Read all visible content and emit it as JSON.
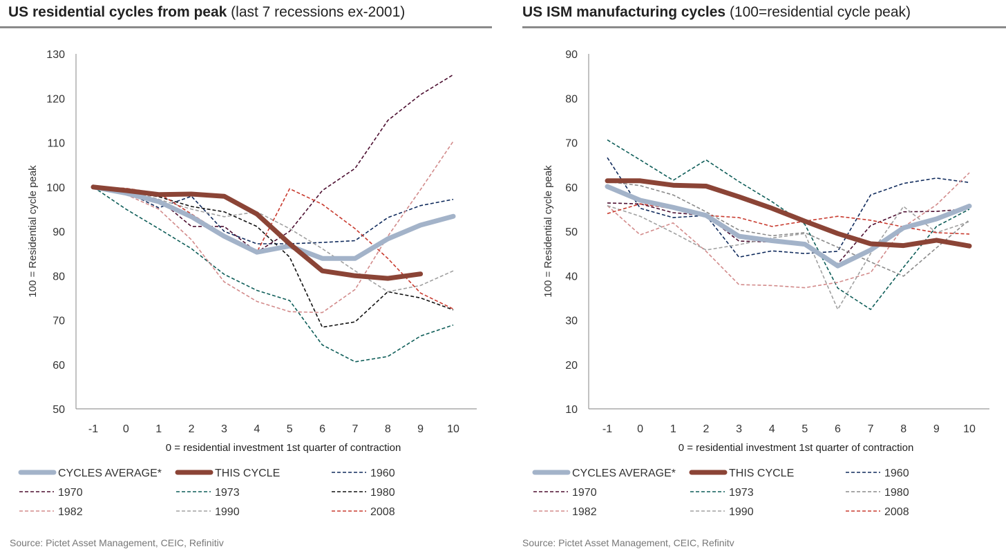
{
  "colors": {
    "average": "#a3b3c9",
    "this_cycle": "#8b4436",
    "1960": "#0f2a5c",
    "1970": "#4b0d2f",
    "1973": "#0d5d58",
    "1980_left": "#111111",
    "1980_right": "#8a8a8a",
    "1982": "#d28a8a",
    "1990": "#a0a0a0",
    "2008": "#c83a2e"
  },
  "chart_data": [
    {
      "type": "line",
      "title": "US residential cycles from peak",
      "subtitle": "(last 7 recessions ex-2001)",
      "xlabel": "0 = residential investment 1st quarter of contraction",
      "ylabel": "100 = Residential cycle peak",
      "ylim": [
        50,
        130
      ],
      "yticks": [
        "50",
        "60",
        "70",
        "80",
        "90",
        "100",
        "110",
        "120",
        "130"
      ],
      "x": [
        -1,
        0,
        1,
        2,
        3,
        4,
        5,
        6,
        7,
        8,
        9,
        10
      ],
      "xticks": [
        "-1",
        "0",
        "1",
        "2",
        "3",
        "4",
        "5",
        "6",
        "7",
        "8",
        "9",
        "10"
      ],
      "grid": false,
      "legend_position": "bottom",
      "source": "Source: Pictet Asset Management, CEIC, Refinitiv",
      "series": [
        {
          "name": "CYCLES AVERAGE*",
          "style": "thick",
          "color_key": "average",
          "values": [
            100,
            98.6,
            96.7,
            93.3,
            88.9,
            85.3,
            86.7,
            83.9,
            83.9,
            88.3,
            91.4,
            93.4
          ]
        },
        {
          "name": "THIS CYCLE",
          "style": "thick",
          "color_key": "this_cycle",
          "values": [
            100,
            99.2,
            98.3,
            98.4,
            97.9,
            93.9,
            87.2,
            81.1,
            80.0,
            79.4,
            80.4,
            null
          ]
        },
        {
          "name": "1960",
          "style": "dash",
          "color_key": "1960",
          "values": [
            100,
            98.9,
            95.3,
            97.9,
            90.0,
            87.2,
            87.2,
            87.5,
            87.9,
            93.1,
            95.8,
            97.2
          ]
        },
        {
          "name": "1970",
          "style": "dash",
          "color_key": "1970",
          "values": [
            100,
            99.2,
            97.2,
            91.1,
            91.1,
            85.3,
            90.0,
            99.2,
            104.2,
            115.0,
            120.8,
            125.3
          ]
        },
        {
          "name": "1973",
          "style": "dash",
          "color_key": "1973",
          "values": [
            100,
            95.0,
            90.6,
            86.1,
            80.3,
            76.7,
            74.4,
            64.4,
            60.6,
            61.8,
            66.4,
            68.9
          ]
        },
        {
          "name": "1980",
          "style": "dash",
          "color_key": "1980_left",
          "values": [
            100,
            98.9,
            97.8,
            95.6,
            94.4,
            91.1,
            84.2,
            68.4,
            69.6,
            76.4,
            75.0,
            72.3
          ]
        },
        {
          "name": "1982",
          "style": "dash",
          "color_key": "1982",
          "values": [
            100,
            98.3,
            95.0,
            88.1,
            78.6,
            74.2,
            71.9,
            71.7,
            76.9,
            88.9,
            99.4,
            110.3
          ]
        },
        {
          "name": "1990",
          "style": "dash",
          "color_key": "1990",
          "values": [
            100,
            99.2,
            97.2,
            95.0,
            93.3,
            94.4,
            90.6,
            86.1,
            81.1,
            76.4,
            77.8,
            81.1
          ]
        },
        {
          "name": "2008",
          "style": "dash",
          "color_key": "2008",
          "values": [
            100,
            99.7,
            98.6,
            93.9,
            89.2,
            85.3,
            99.6,
            96.1,
            90.6,
            83.9,
            76.1,
            72.5
          ]
        }
      ]
    },
    {
      "type": "line",
      "title": "US ISM manufacturing cycles",
      "subtitle": "(100=residential cycle peak)",
      "xlabel": "0 = residential investment 1st quarter of contraction",
      "ylabel": "100 = Residential cycle peak",
      "ylim": [
        10,
        90
      ],
      "yticks": [
        "10",
        "20",
        "30",
        "40",
        "50",
        "60",
        "70",
        "80",
        "90"
      ],
      "x": [
        -1,
        0,
        1,
        2,
        3,
        4,
        5,
        6,
        7,
        8,
        9,
        10
      ],
      "xticks": [
        "-1",
        "0",
        "1",
        "2",
        "3",
        "4",
        "5",
        "6",
        "7",
        "8",
        "9",
        "10"
      ],
      "grid": false,
      "legend_position": "bottom",
      "source": "Source: Pictet Asset Management, CEIC, Refinitv",
      "series": [
        {
          "name": "CYCLES AVERAGE*",
          "style": "thick",
          "color_key": "average",
          "values": [
            60.1,
            57.0,
            55.4,
            53.6,
            48.9,
            47.9,
            47.1,
            42.2,
            45.8,
            50.8,
            52.8,
            55.7
          ]
        },
        {
          "name": "THIS CYCLE",
          "style": "thick",
          "color_key": "this_cycle",
          "values": [
            61.4,
            61.4,
            60.4,
            60.2,
            57.8,
            55.2,
            52.3,
            49.5,
            47.2,
            46.8,
            48.0,
            46.7
          ]
        },
        {
          "name": "1960",
          "style": "dash",
          "color_key": "1960",
          "values": [
            66.6,
            55.2,
            53.1,
            53.6,
            44.2,
            45.6,
            45.0,
            45.5,
            58.2,
            60.8,
            62.0,
            61.0
          ]
        },
        {
          "name": "1970",
          "style": "dash",
          "color_key": "1970",
          "values": [
            56.4,
            56.2,
            54.2,
            53.6,
            47.8,
            47.6,
            47.0,
            42.7,
            51.3,
            54.4,
            54.5,
            55.1
          ]
        },
        {
          "name": "1973",
          "style": "dash",
          "color_key": "1973",
          "values": [
            70.6,
            66.1,
            61.5,
            66.1,
            61.2,
            56.7,
            51.6,
            37.2,
            32.4,
            41.9,
            51.1,
            55.0
          ]
        },
        {
          "name": "1980",
          "style": "dash",
          "color_key": "1980_right",
          "values": [
            61.2,
            60.3,
            58.2,
            54.4,
            50.3,
            49.0,
            49.7,
            46.4,
            43.1,
            39.9,
            46.3,
            52.6
          ]
        },
        {
          "name": "1982",
          "style": "dash",
          "color_key": "1982",
          "values": [
            55.8,
            49.2,
            51.9,
            45.5,
            38.0,
            37.8,
            37.3,
            38.5,
            40.7,
            51.0,
            56.0,
            63.2
          ]
        },
        {
          "name": "1990",
          "style": "dash",
          "color_key": "1990",
          "values": [
            55.8,
            53.4,
            49.7,
            45.8,
            47.0,
            48.5,
            49.5,
            32.4,
            45.0,
            55.6,
            49.7,
            52.2
          ]
        },
        {
          "name": "2008",
          "style": "dash",
          "color_key": "2008",
          "values": [
            54.0,
            56.2,
            55.1,
            53.6,
            53.1,
            51.1,
            52.3,
            53.4,
            52.5,
            51.0,
            49.7,
            49.4
          ]
        }
      ]
    }
  ]
}
